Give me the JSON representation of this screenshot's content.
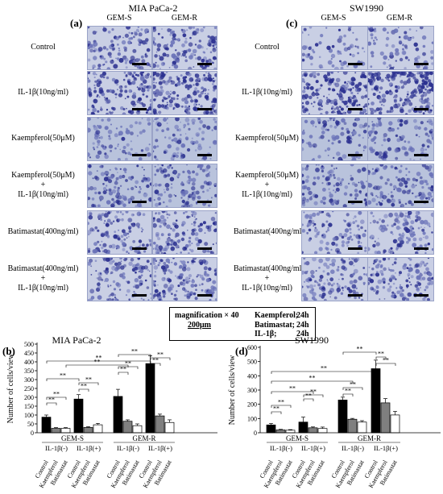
{
  "panels": {
    "a": {
      "letter": "(a)",
      "title": "MIA PaCa-2"
    },
    "c": {
      "letter": "(c)",
      "title": "SW1990"
    },
    "b": {
      "letter": "(b)"
    },
    "d": {
      "letter": "(d)"
    }
  },
  "column_headers": [
    "GEM-S",
    "GEM-R"
  ],
  "rows_a": [
    "Control",
    "IL-1β(10ng/ml)",
    "Kaempferol(50μM)",
    "Kaempferol(50μM)\n+\nIL-1β(10ng/ml)",
    "Batimastat(400ng/ml)",
    "Batimastat(400ng/ml)\n+\nIL-1β(10ng/ml)"
  ],
  "rows_c": [
    "Control",
    "IL-1β(10ng/ml)",
    "Kaempferol(50μM)",
    "Kaempferol(50μM)\n+\nIL-1β(10ng/ml)",
    "Batimastat(400ng/ml)",
    "Batimastat(400ng/ml)\n+\nIL-1β(10ng/ml)"
  ],
  "legend_box": {
    "magnification": "magnification × 40",
    "scale": "200μm",
    "treatments": [
      {
        "name": "Kaempferol;",
        "time": "24h"
      },
      {
        "name": "Batimastat;",
        "time": "24h"
      },
      {
        "name": "IL-1β;",
        "time": "24h"
      }
    ]
  },
  "significance_label": "**",
  "colors": {
    "control": "#000000",
    "kaempferol": "#7f7f7f",
    "batimastat": "#ffffff",
    "stain_dark": "#2a2f8f",
    "stain_bg": "#c9cfe4"
  },
  "chart_data": [
    {
      "type": "bar",
      "title": "MIA PaCa-2",
      "ylabel": "Number of cells/view",
      "ylim": [
        0,
        500
      ],
      "yticks": [
        0,
        50,
        100,
        150,
        200,
        250,
        300,
        350,
        400,
        450,
        500
      ],
      "categories": [
        "Control",
        "Kaempferol",
        "Batimastat",
        "Control",
        "Kaempferol",
        "Batimastat",
        "Control",
        "Kaempferol",
        "Batimastat",
        "Control",
        "Kaempferol",
        "Batimastat"
      ],
      "cell_groups": [
        "GEM-S",
        "GEM-R"
      ],
      "il_groups": [
        "IL-1β(-)",
        "IL-1β(+)",
        "IL-1β(-)",
        "IL-1β(+)"
      ],
      "values": [
        88,
        25,
        25,
        190,
        30,
        45,
        205,
        65,
        40,
        390,
        95,
        58
      ],
      "errors": [
        12,
        4,
        4,
        25,
        4,
        8,
        40,
        8,
        10,
        45,
        10,
        15
      ]
    },
    {
      "type": "bar",
      "title": "SW1990",
      "ylabel": "Number of cells/view",
      "ylim": [
        0,
        600
      ],
      "yticks": [
        0,
        100,
        200,
        300,
        400,
        500,
        600
      ],
      "categories": [
        "Control",
        "Kaempferol",
        "Batimastat",
        "Control",
        "Kaempferol",
        "Batimastat",
        "Control",
        "Kaempferol",
        "Batimastat",
        "Control",
        "Kaempferol",
        "Batimastat"
      ],
      "cell_groups": [
        "GEM-S",
        "GEM-R"
      ],
      "il_groups": [
        "IL-1β(-)",
        "IL-1β(+)",
        "IL-1β(-)",
        "IL-1β(+)"
      ],
      "values": [
        55,
        20,
        18,
        75,
        35,
        30,
        230,
        95,
        75,
        450,
        210,
        125
      ],
      "errors": [
        10,
        4,
        4,
        35,
        6,
        10,
        20,
        6,
        10,
        60,
        30,
        25
      ]
    }
  ]
}
